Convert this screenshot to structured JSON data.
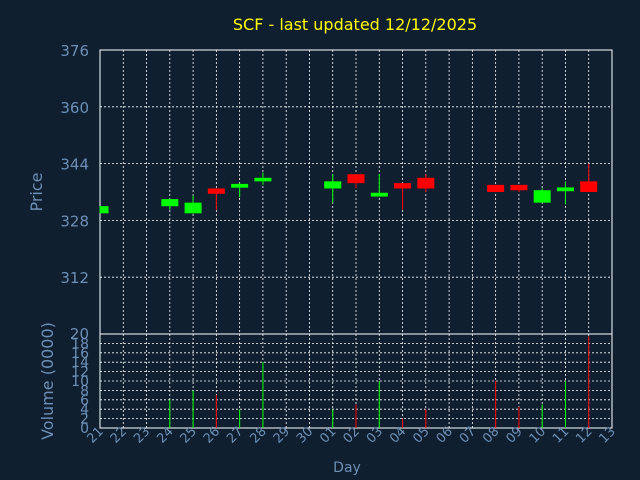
{
  "chart_data": [
    {
      "type": "candlestick",
      "title": "SCF - last updated 12/12/2025",
      "ylabel": "Price",
      "xlabel": "Day",
      "ylim": [
        296,
        376
      ],
      "yticks": [
        376,
        360,
        344,
        328,
        312
      ],
      "grid": true,
      "categories": [
        "21",
        "22",
        "23",
        "24",
        "25",
        "26",
        "27",
        "28",
        "29",
        "30",
        "01",
        "02",
        "03",
        "04",
        "05",
        "06",
        "07",
        "08",
        "09",
        "10",
        "11",
        "12",
        "13"
      ],
      "colors": {
        "up": "#00ff00",
        "down": "#ff0000",
        "background": "#0f1f30",
        "grid": "#ffffff",
        "text": "#6d8fb5",
        "title": "#ffff00"
      },
      "candles": [
        {
          "day": "21",
          "open": 330,
          "close": 332,
          "high": 332,
          "low": 330,
          "dir": "up"
        },
        {
          "day": "24",
          "open": 332,
          "close": 334,
          "high": 334,
          "low": 331,
          "dir": "up"
        },
        {
          "day": "25",
          "open": 330,
          "close": 333,
          "high": 335,
          "low": 330,
          "dir": "up"
        },
        {
          "day": "26",
          "open": 337,
          "close": 335.5,
          "high": 337,
          "low": 331,
          "dir": "down"
        },
        {
          "day": "27",
          "open": 337.5,
          "close": 338,
          "high": 338.5,
          "low": 334.5,
          "dir": "up"
        },
        {
          "day": "28",
          "open": 339,
          "close": 340,
          "high": 341.5,
          "low": 338,
          "dir": "up"
        },
        {
          "day": "01",
          "open": 337,
          "close": 339,
          "high": 341,
          "low": 333,
          "dir": "up"
        },
        {
          "day": "02",
          "open": 341,
          "close": 338.5,
          "high": 341,
          "low": 337,
          "dir": "down"
        },
        {
          "day": "03",
          "open": 335,
          "close": 335.5,
          "high": 341,
          "low": 335,
          "dir": "up"
        },
        {
          "day": "04",
          "open": 338.5,
          "close": 337,
          "high": 338.5,
          "low": 331,
          "dir": "down"
        },
        {
          "day": "05",
          "open": 340,
          "close": 337,
          "high": 341,
          "low": 336,
          "dir": "down"
        },
        {
          "day": "08",
          "open": 338,
          "close": 336,
          "high": 338,
          "low": 336,
          "dir": "down"
        },
        {
          "day": "09",
          "open": 338,
          "close": 336.5,
          "high": 338,
          "low": 336,
          "dir": "down"
        },
        {
          "day": "10",
          "open": 333,
          "close": 336.5,
          "high": 337,
          "low": 333,
          "dir": "up"
        },
        {
          "day": "11",
          "open": 336.5,
          "close": 337,
          "high": 339,
          "low": 332.5,
          "dir": "up"
        },
        {
          "day": "12",
          "open": 339,
          "close": 336,
          "high": 344,
          "low": 336,
          "dir": "down"
        }
      ]
    },
    {
      "type": "bar",
      "ylabel": "Volume (0000)",
      "ylim": [
        0,
        20
      ],
      "yticks": [
        20,
        18,
        16,
        14,
        12,
        10,
        8,
        6,
        4,
        2,
        0
      ],
      "grid": true,
      "categories": [
        "21",
        "22",
        "23",
        "24",
        "25",
        "26",
        "27",
        "28",
        "29",
        "30",
        "01",
        "02",
        "03",
        "04",
        "05",
        "06",
        "07",
        "08",
        "09",
        "10",
        "11",
        "12",
        "13"
      ],
      "volumes": [
        {
          "day": "24",
          "value": 6,
          "dir": "up"
        },
        {
          "day": "25",
          "value": 8,
          "dir": "up"
        },
        {
          "day": "26",
          "value": 7,
          "dir": "down"
        },
        {
          "day": "27",
          "value": 4,
          "dir": "up"
        },
        {
          "day": "28",
          "value": 14,
          "dir": "up"
        },
        {
          "day": "01",
          "value": 4,
          "dir": "up"
        },
        {
          "day": "02",
          "value": 5,
          "dir": "down"
        },
        {
          "day": "03",
          "value": 10,
          "dir": "up"
        },
        {
          "day": "04",
          "value": 2,
          "dir": "down"
        },
        {
          "day": "05",
          "value": 4,
          "dir": "down"
        },
        {
          "day": "08",
          "value": 10,
          "dir": "down"
        },
        {
          "day": "09",
          "value": 4.5,
          "dir": "down"
        },
        {
          "day": "10",
          "value": 5,
          "dir": "up"
        },
        {
          "day": "11",
          "value": 10,
          "dir": "up"
        },
        {
          "day": "12",
          "value": 19.5,
          "dir": "down"
        }
      ]
    }
  ]
}
